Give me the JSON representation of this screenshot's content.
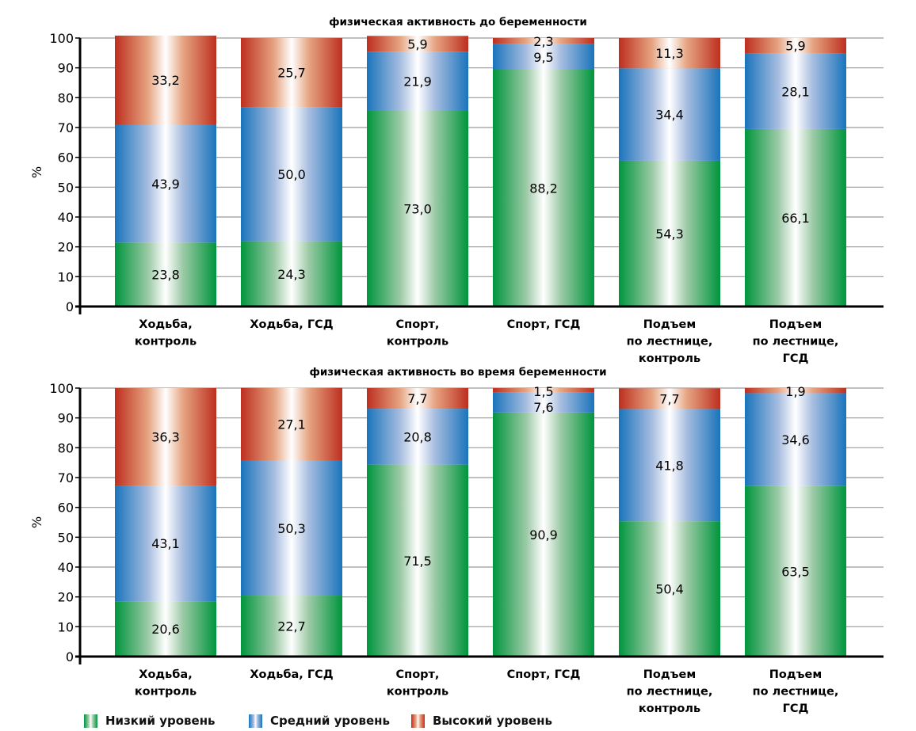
{
  "chart_data": [
    {
      "type": "bar",
      "stacked": true,
      "title": "физическая активность до беременности",
      "xlabel": "",
      "ylabel": "%",
      "ylim": [
        0,
        100
      ],
      "yticks": [
        "100",
        "90",
        "80",
        "70",
        "60",
        "50",
        "40",
        "20",
        "10",
        "0"
      ],
      "grid": true,
      "categories": [
        [
          "Ходьба,",
          "контроль"
        ],
        [
          "Ходьба, ГСД"
        ],
        [
          "Спорт,",
          "контроль"
        ],
        [
          "Спорт, ГСД"
        ],
        [
          "Подъем",
          "по лестнице,",
          "контроль"
        ],
        [
          "Подъем",
          "по лестнице,",
          "ГСД"
        ]
      ],
      "series": [
        {
          "name": "Низкий уровень",
          "key": "low",
          "values": [
            23.8,
            24.3,
            73.0,
            88.2,
            54.3,
            66.1
          ],
          "labels": [
            "23,8",
            "24,3",
            "73,0",
            "88,2",
            "54,3",
            "66,1"
          ]
        },
        {
          "name": "Средний уровень",
          "key": "mid",
          "values": [
            43.9,
            50.0,
            21.9,
            9.5,
            34.4,
            28.1
          ],
          "labels": [
            "43,9",
            "50,0",
            "21,9",
            "9,5",
            "34,4",
            "28,1"
          ]
        },
        {
          "name": "Высокий уровень",
          "key": "high",
          "values": [
            33.2,
            25.7,
            5.9,
            2.3,
            11.3,
            5.9
          ],
          "labels": [
            "33,2",
            "25,7",
            "5,9",
            "2,3",
            "11,3",
            "5,9"
          ]
        }
      ]
    },
    {
      "type": "bar",
      "stacked": true,
      "title": "физическая активность во время беременности",
      "xlabel": "",
      "ylabel": "%",
      "ylim": [
        0,
        100
      ],
      "yticks": [
        "100",
        "90",
        "80",
        "70",
        "60",
        "50",
        "40",
        "20",
        "10",
        "0"
      ],
      "grid": true,
      "categories": [
        [
          "Ходьба,",
          "контроль"
        ],
        [
          "Ходьба, ГСД"
        ],
        [
          "Спорт,",
          "контроль"
        ],
        [
          "Спорт, ГСД"
        ],
        [
          "Подъем",
          "по лестнице,",
          "контроль"
        ],
        [
          "Подъем",
          "по лестнице,",
          "ГСД"
        ]
      ],
      "series": [
        {
          "name": "Низкий уровень",
          "key": "low",
          "values": [
            20.6,
            22.7,
            71.5,
            90.9,
            50.4,
            63.5
          ],
          "labels": [
            "20,6",
            "22,7",
            "71,5",
            "90,9",
            "50,4",
            "63,5"
          ]
        },
        {
          "name": "Средний уровень",
          "key": "mid",
          "values": [
            43.1,
            50.3,
            20.8,
            7.6,
            41.8,
            34.6
          ],
          "labels": [
            "43,1",
            "50,3",
            "20,8",
            "7,6",
            "41,8",
            "34,6"
          ]
        },
        {
          "name": "Высокий уровень",
          "key": "high",
          "values": [
            36.3,
            27.1,
            7.7,
            1.5,
            7.7,
            1.9
          ],
          "labels": [
            "36,3",
            "27,1",
            "7,7",
            "1,5",
            "7,7",
            "1,9"
          ]
        }
      ]
    }
  ],
  "legend": {
    "position": "bottom-left",
    "items": [
      {
        "key": "low",
        "label": "Низкий уровень"
      },
      {
        "key": "mid",
        "label": "Средний уровень"
      },
      {
        "key": "high",
        "label": "Высокий уровень"
      }
    ]
  },
  "colors": {
    "low": "#00953d",
    "mid": "#1a74bb",
    "high": "#bd2f1f"
  }
}
